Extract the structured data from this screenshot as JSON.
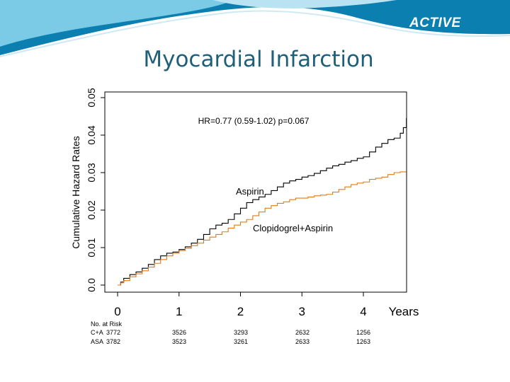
{
  "slide": {
    "brand": "ACTIVE",
    "title": "Myocardial Infarction",
    "header_colors": {
      "dark": "#0a7fb0",
      "light": "#7ccbe6",
      "accent": "#b9e3f2"
    }
  },
  "chart_data": {
    "type": "line",
    "title": "",
    "annotation": "HR=0.77 (0.59-1.02) p=0.067",
    "xlabel": "Years",
    "ylabel": "Cumulative Hazard Rates",
    "xlim": [
      0,
      4.7
    ],
    "ylim": [
      0,
      0.05
    ],
    "x_ticks": [
      0,
      1,
      2,
      3,
      4
    ],
    "x_tick_labels": [
      "0",
      "1",
      "2",
      "3",
      "4"
    ],
    "y_ticks": [
      0,
      0.01,
      0.02,
      0.03,
      0.04,
      0.05
    ],
    "y_tick_labels": [
      "0.0",
      "0.01",
      "0.02",
      "0.03",
      "0.04",
      "0.05"
    ],
    "grid": false,
    "series": [
      {
        "name": "Aspirin",
        "color": "#000000",
        "x": [
          0,
          0.05,
          0.1,
          0.2,
          0.3,
          0.4,
          0.5,
          0.6,
          0.7,
          0.8,
          0.9,
          1.0,
          1.1,
          1.2,
          1.3,
          1.4,
          1.5,
          1.6,
          1.7,
          1.8,
          1.9,
          2.0,
          2.1,
          2.2,
          2.3,
          2.4,
          2.5,
          2.6,
          2.7,
          2.8,
          2.9,
          3.0,
          3.1,
          3.2,
          3.3,
          3.4,
          3.5,
          3.6,
          3.7,
          3.8,
          3.9,
          4.0,
          4.1,
          4.2,
          4.3,
          4.4,
          4.5,
          4.6,
          4.65,
          4.7
        ],
        "y": [
          0,
          0.0008,
          0.0018,
          0.0028,
          0.0035,
          0.0045,
          0.0055,
          0.0068,
          0.0078,
          0.0085,
          0.0088,
          0.0095,
          0.0102,
          0.0112,
          0.0122,
          0.0135,
          0.015,
          0.016,
          0.0165,
          0.0175,
          0.019,
          0.0205,
          0.022,
          0.0228,
          0.0235,
          0.0242,
          0.0252,
          0.0262,
          0.0272,
          0.0278,
          0.0282,
          0.0288,
          0.0292,
          0.0298,
          0.0305,
          0.0312,
          0.0318,
          0.0322,
          0.0328,
          0.0332,
          0.0338,
          0.0342,
          0.0355,
          0.0368,
          0.0378,
          0.0388,
          0.0392,
          0.0405,
          0.042,
          0.0445
        ]
      },
      {
        "name": "Clopidogrel+Aspirin",
        "color": "#e07b1a",
        "x": [
          0,
          0.05,
          0.1,
          0.2,
          0.3,
          0.4,
          0.5,
          0.6,
          0.7,
          0.8,
          0.9,
          1.0,
          1.1,
          1.2,
          1.3,
          1.4,
          1.5,
          1.6,
          1.7,
          1.8,
          1.9,
          2.0,
          2.1,
          2.2,
          2.3,
          2.4,
          2.5,
          2.6,
          2.7,
          2.8,
          2.9,
          3.0,
          3.1,
          3.2,
          3.3,
          3.4,
          3.5,
          3.6,
          3.7,
          3.8,
          3.9,
          4.0,
          4.1,
          4.2,
          4.3,
          4.4,
          4.5,
          4.6,
          4.7
        ],
        "y": [
          0,
          0.0006,
          0.0012,
          0.0022,
          0.003,
          0.0038,
          0.0048,
          0.0058,
          0.0068,
          0.0078,
          0.0085,
          0.0092,
          0.0098,
          0.0105,
          0.0112,
          0.012,
          0.0128,
          0.0135,
          0.0142,
          0.0152,
          0.016,
          0.0168,
          0.0175,
          0.0185,
          0.0195,
          0.0205,
          0.0212,
          0.0218,
          0.0222,
          0.0228,
          0.0232,
          0.0232,
          0.0235,
          0.0238,
          0.024,
          0.0242,
          0.0248,
          0.0255,
          0.0262,
          0.0268,
          0.0272,
          0.0275,
          0.0282,
          0.0285,
          0.0288,
          0.0295,
          0.03,
          0.0302,
          0.0302
        ]
      }
    ],
    "curve_labels": [
      "Aspirin",
      "Clopidogrel+Aspirin"
    ],
    "risk_table": {
      "title": "No. at Risk",
      "rows": [
        {
          "label": "C+A",
          "values": [
            "3772",
            "3526",
            "3293",
            "2632",
            "1256"
          ]
        },
        {
          "label": "ASA",
          "values": [
            "3782",
            "3523",
            "3261",
            "2633",
            "1263"
          ]
        }
      ]
    }
  }
}
